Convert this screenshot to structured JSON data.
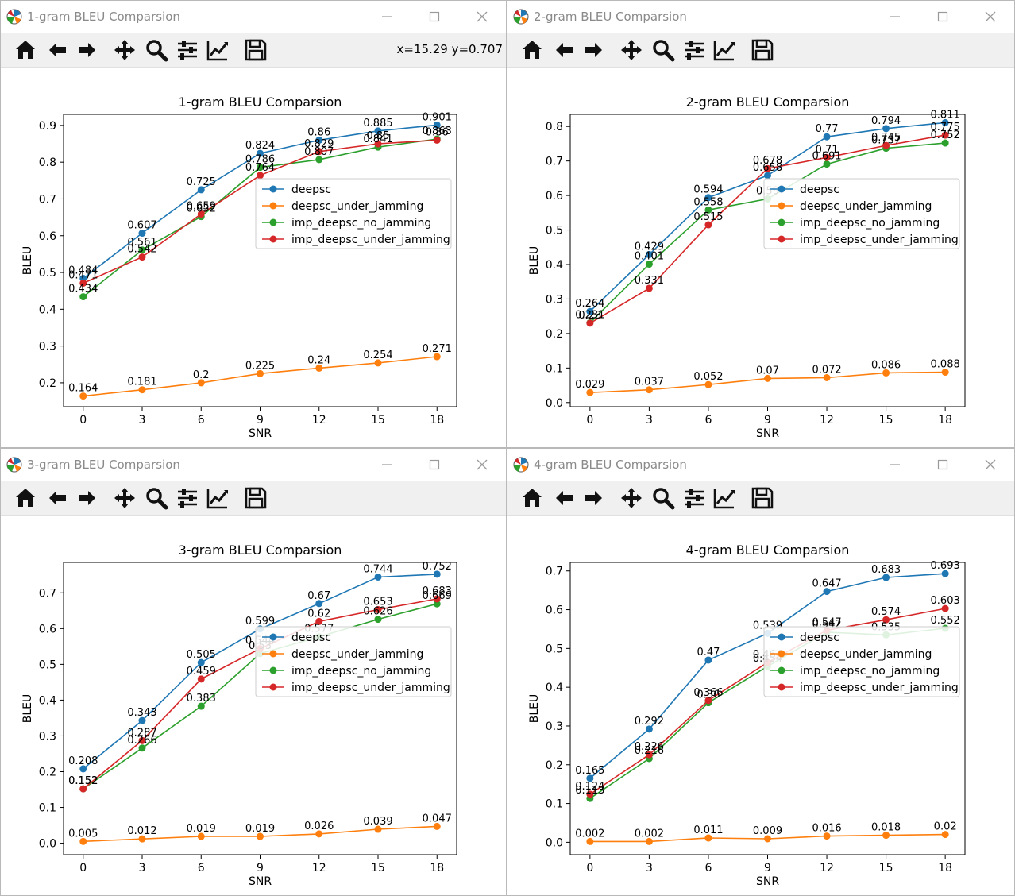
{
  "windows": [
    {
      "id": "w1",
      "window_title": "1-gram BLEU Comparsion",
      "coords_readout": "x=15.29 y=0.707",
      "chart_data": {
        "type": "line",
        "title": "1-gram BLEU Comparsion",
        "xlabel": "SNR",
        "ylabel": "BLEU",
        "x": [
          0,
          3,
          6,
          9,
          12,
          15,
          18
        ],
        "xlim": [
          -1,
          19
        ],
        "ylim": [
          0.135,
          0.93
        ],
        "yticks": [
          0.2,
          0.3,
          0.4,
          0.5,
          0.6,
          0.7,
          0.8,
          0.9
        ],
        "grid": false,
        "legend": "center-right",
        "series": [
          {
            "name": "deepsc",
            "color": "#1f77b4",
            "values": [
              0.484,
              0.607,
              0.725,
              0.824,
              0.86,
              0.885,
              0.901
            ],
            "labels": [
              "0.484",
              "0.607",
              "0.725",
              "0.824",
              "0.86",
              "0.885",
              "0.901"
            ]
          },
          {
            "name": "deepsc_under_jamming",
            "color": "#ff7f0e",
            "values": [
              0.164,
              0.181,
              0.2,
              0.225,
              0.24,
              0.254,
              0.271
            ],
            "labels": [
              "0.164",
              "0.181",
              "0.2",
              "0.225",
              "0.24",
              "0.254",
              "0.271"
            ]
          },
          {
            "name": "imp_deepsc_no_jamming",
            "color": "#2ca02c",
            "values": [
              0.434,
              0.561,
              0.652,
              0.786,
              0.807,
              0.841,
              0.863
            ],
            "labels": [
              "0.434",
              "0.561",
              "0.652",
              "0.786",
              "0.807",
              "0.841",
              "0.863"
            ]
          },
          {
            "name": "imp_deepsc_under_jamming",
            "color": "#d62728",
            "values": [
              0.471,
              0.542,
              0.659,
              0.764,
              0.829,
              0.85,
              0.86
            ],
            "labels": [
              "0.471",
              "0.542",
              "0.659",
              "0.764",
              "0.829",
              "0.85",
              "0.86"
            ]
          }
        ]
      }
    },
    {
      "id": "w2",
      "window_title": "2-gram BLEU Comparsion",
      "coords_readout": "",
      "chart_data": {
        "type": "line",
        "title": "2-gram BLEU Comparsion",
        "xlabel": "SNR",
        "ylabel": "BLEU",
        "x": [
          0,
          3,
          6,
          9,
          12,
          15,
          18
        ],
        "xlim": [
          -1,
          19
        ],
        "ylim": [
          -0.012,
          0.835
        ],
        "yticks": [
          0.0,
          0.1,
          0.2,
          0.3,
          0.4,
          0.5,
          0.6,
          0.7,
          0.8
        ],
        "grid": false,
        "legend": "center-right",
        "series": [
          {
            "name": "deepsc",
            "color": "#1f77b4",
            "values": [
              0.264,
              0.429,
              0.594,
              0.658,
              0.77,
              0.794,
              0.811
            ],
            "labels": [
              "0.264",
              "0.429",
              "0.594",
              "0.658",
              "0.77",
              "0.794",
              "0.811"
            ]
          },
          {
            "name": "deepsc_under_jamming",
            "color": "#ff7f0e",
            "values": [
              0.029,
              0.037,
              0.052,
              0.07,
              0.072,
              0.086,
              0.088
            ],
            "labels": [
              "0.029",
              "0.037",
              "0.052",
              "0.07",
              "0.072",
              "0.086",
              "0.088"
            ]
          },
          {
            "name": "imp_deepsc_no_jamming",
            "color": "#2ca02c",
            "values": [
              0.231,
              0.401,
              0.558,
              0.59,
              0.691,
              0.737,
              0.752
            ],
            "labels": [
              "0.231",
              "0.401",
              "0.558",
              "0.59",
              "0.691",
              "0.737",
              "0.752"
            ]
          },
          {
            "name": "imp_deepsc_under_jamming",
            "color": "#d62728",
            "values": [
              0.23,
              0.331,
              0.515,
              0.678,
              0.71,
              0.745,
              0.775
            ],
            "labels": [
              "0.23",
              "0.331",
              "0.515",
              "0.678",
              "0.71",
              "0.745",
              "0.775"
            ]
          }
        ]
      }
    },
    {
      "id": "w3",
      "window_title": "3-gram BLEU Comparsion",
      "coords_readout": "",
      "chart_data": {
        "type": "line",
        "title": "3-gram BLEU Comparsion",
        "xlabel": "SNR",
        "ylabel": "BLEU",
        "x": [
          0,
          3,
          6,
          9,
          12,
          15,
          18
        ],
        "xlim": [
          -1,
          19
        ],
        "ylim": [
          -0.032,
          0.785
        ],
        "yticks": [
          0.0,
          0.1,
          0.2,
          0.3,
          0.4,
          0.5,
          0.6,
          0.7
        ],
        "grid": false,
        "legend": "center-right",
        "series": [
          {
            "name": "deepsc",
            "color": "#1f77b4",
            "values": [
              0.208,
              0.343,
              0.505,
              0.599,
              0.67,
              0.744,
              0.752
            ],
            "labels": [
              "0.208",
              "0.343",
              "0.505",
              "0.599",
              "0.67",
              "0.744",
              "0.752"
            ]
          },
          {
            "name": "deepsc_under_jamming",
            "color": "#ff7f0e",
            "values": [
              0.005,
              0.012,
              0.019,
              0.019,
              0.026,
              0.039,
              0.047
            ],
            "labels": [
              "0.005",
              "0.012",
              "0.019",
              "0.019",
              "0.026",
              "0.039",
              "0.047"
            ]
          },
          {
            "name": "imp_deepsc_no_jamming",
            "color": "#2ca02c",
            "values": [
              0.152,
              0.266,
              0.383,
              0.53,
              0.577,
              0.626,
              0.669
            ],
            "labels": [
              "0.152",
              "0.266",
              "0.383",
              "0.53",
              "0.577",
              "0.626",
              "0.669"
            ]
          },
          {
            "name": "imp_deepsc_under_jamming",
            "color": "#d62728",
            "values": [
              0.152,
              0.287,
              0.459,
              0.544,
              0.62,
              0.653,
              0.683
            ],
            "labels": [
              "0.152",
              "0.287",
              "0.459",
              "0.544",
              "0.62",
              "0.653",
              "0.683"
            ]
          }
        ]
      }
    },
    {
      "id": "w4",
      "window_title": "4-gram BLEU Comparsion",
      "coords_readout": "",
      "chart_data": {
        "type": "line",
        "title": "4-gram BLEU Comparsion",
        "xlabel": "SNR",
        "ylabel": "BLEU",
        "x": [
          0,
          3,
          6,
          9,
          12,
          15,
          18
        ],
        "xlim": [
          -1,
          19
        ],
        "ylim": [
          -0.032,
          0.722
        ],
        "yticks": [
          0.0,
          0.1,
          0.2,
          0.3,
          0.4,
          0.5,
          0.6,
          0.7
        ],
        "grid": false,
        "legend": "center-right",
        "series": [
          {
            "name": "deepsc",
            "color": "#1f77b4",
            "values": [
              0.165,
              0.292,
              0.47,
              0.539,
              0.647,
              0.683,
              0.693
            ],
            "labels": [
              "0.165",
              "0.292",
              "0.47",
              "0.539",
              "0.647",
              "0.683",
              "0.693"
            ]
          },
          {
            "name": "deepsc_under_jamming",
            "color": "#ff7f0e",
            "values": [
              0.002,
              0.002,
              0.011,
              0.009,
              0.016,
              0.018,
              0.02
            ],
            "labels": [
              "0.002",
              "0.002",
              "0.011",
              "0.009",
              "0.016",
              "0.018",
              "0.02"
            ]
          },
          {
            "name": "imp_deepsc_no_jamming",
            "color": "#2ca02c",
            "values": [
              0.113,
              0.216,
              0.36,
              0.454,
              0.542,
              0.535,
              0.552
            ],
            "labels": [
              "0.113",
              "0.216",
              "0.36",
              "0.454",
              "0.542",
              "0.535",
              "0.552"
            ]
          },
          {
            "name": "imp_deepsc_under_jamming",
            "color": "#d62728",
            "values": [
              0.124,
              0.226,
              0.366,
              0.464,
              0.547,
              0.574,
              0.603
            ],
            "labels": [
              "0.124",
              "0.226",
              "0.366",
              "0.464",
              "0.547",
              "0.574",
              "0.603"
            ]
          }
        ]
      }
    }
  ],
  "toolbar_icons": [
    "home-icon",
    "back-arrow-icon",
    "forward-arrow-icon",
    "pan-move-icon",
    "zoom-magnifier-icon",
    "subplots-config-icon",
    "edit-axes-curve-icon",
    "save-floppy-icon"
  ],
  "window_controls": [
    "minimize-icon",
    "maximize-icon",
    "close-icon"
  ]
}
